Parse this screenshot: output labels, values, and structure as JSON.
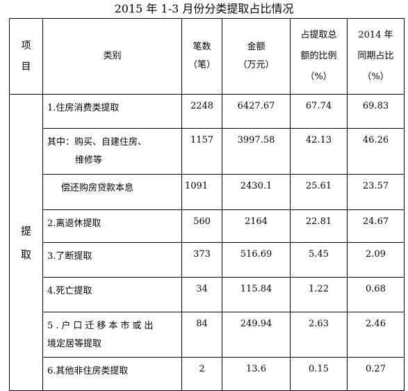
{
  "title": "2015 年 1-3 月份分类提取占比情况",
  "headers": {
    "item": [
      "项",
      "目"
    ],
    "category": "类别",
    "count": [
      "笔数",
      "（笔）"
    ],
    "amount": [
      "金额",
      "（万元）"
    ],
    "ratio": [
      "占提取总",
      "额的比例",
      "（%）"
    ],
    "prev": [
      "2014 年",
      "同期占比",
      "（%）"
    ]
  },
  "side_label": [
    "提",
    "取"
  ],
  "rows": [
    {
      "category": "1.住房消费类提取",
      "count": "2248",
      "amount": "6427.67",
      "ratio": "67.74",
      "prev": "69.83"
    },
    {
      "category_lines": [
        "其中：购买、自建住房、",
        "维修等"
      ],
      "count": "1157",
      "amount": "3997.58",
      "ratio": "42.13",
      "prev": "46.26"
    },
    {
      "category": "偿还购房贷款本息",
      "count": "1091",
      "amount": "2430.1",
      "ratio": "25.61",
      "prev": "23.57"
    },
    {
      "category": "2.离退休提取",
      "count": "560",
      "amount": "2164",
      "ratio": "22.81",
      "prev": "24.67"
    },
    {
      "category": "3.了断提取",
      "count": "373",
      "amount": "516.69",
      "ratio": "5.45",
      "prev": "2.09"
    },
    {
      "category": "4.死亡提取",
      "count": "34",
      "amount": "115.84",
      "ratio": "1.22",
      "prev": "0.68"
    },
    {
      "category_lines": [
        "5.户口迁移本市或出",
        "境定居等提取"
      ],
      "count": "84",
      "amount": "249.94",
      "ratio": "2.63",
      "prev": "2.46"
    },
    {
      "category": "6.其他非住房类提取",
      "count": "2",
      "amount": "13.6",
      "ratio": "0.15",
      "prev": "0.27"
    }
  ]
}
